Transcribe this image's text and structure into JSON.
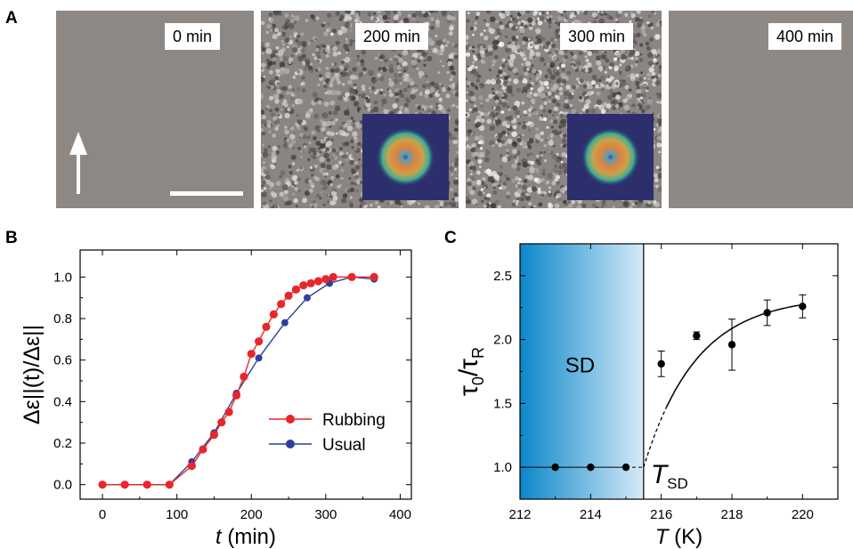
{
  "panel_letters": [
    "A",
    "B",
    "C"
  ],
  "panel_a": {
    "frames": [
      {
        "time_label": "0 min",
        "has_fft_inset": false,
        "has_scale_bar": true,
        "has_arrow": true
      },
      {
        "time_label": "200 min",
        "has_fft_inset": true,
        "has_scale_bar": false,
        "has_arrow": false
      },
      {
        "time_label": "300 min",
        "has_fft_inset": true,
        "has_scale_bar": false,
        "has_arrow": false
      },
      {
        "time_label": "400 min",
        "has_fft_inset": false,
        "has_scale_bar": false,
        "has_arrow": false
      }
    ],
    "colors": {
      "background_gray": "#8d8784",
      "inset_bg": "#2c2f6b",
      "ring_outer": "#3fae95",
      "ring_inner": "#e0823f"
    }
  },
  "chart_data": [
    {
      "id": "B",
      "type": "line",
      "xlabel": "t (min)",
      "ylabel": "Δε||(t)/Δε||",
      "xlim": [
        -30,
        415
      ],
      "ylim": [
        -0.07,
        1.13
      ],
      "xticks": [
        0,
        100,
        200,
        300,
        400
      ],
      "yticks": [
        0.0,
        0.2,
        0.4,
        0.6,
        0.8,
        1.0
      ],
      "xtick_labels": [
        "0",
        "100",
        "200",
        "300",
        "400"
      ],
      "ytick_labels": [
        "0.0",
        "0.2",
        "0.4",
        "0.6",
        "0.8",
        "1.0"
      ],
      "grid": false,
      "legend_position": "bottom-right",
      "series": [
        {
          "name": "Rubbing",
          "color": "#e8262b",
          "x": [
            0,
            30,
            60,
            90,
            120,
            135,
            150,
            160,
            170,
            180,
            190,
            200,
            210,
            220,
            230,
            240,
            250,
            260,
            270,
            280,
            290,
            300,
            310,
            335,
            365
          ],
          "y": [
            0,
            0,
            0,
            0,
            0.09,
            0.17,
            0.24,
            0.3,
            0.35,
            0.43,
            0.52,
            0.63,
            0.69,
            0.76,
            0.82,
            0.87,
            0.91,
            0.94,
            0.96,
            0.97,
            0.98,
            0.99,
            1.0,
            1.0,
            1.0
          ]
        },
        {
          "name": "Usual",
          "color": "#2d3f98",
          "x": [
            0,
            30,
            60,
            90,
            120,
            150,
            180,
            210,
            245,
            275,
            305,
            335,
            365
          ],
          "y": [
            0,
            0,
            0,
            0,
            0.11,
            0.25,
            0.44,
            0.61,
            0.78,
            0.9,
            0.97,
            1.0,
            0.99
          ]
        }
      ]
    },
    {
      "id": "C",
      "type": "scatter",
      "xlabel": "T (K)",
      "ylabel": "τ0/τR",
      "xlim": [
        212,
        221
      ],
      "ylim": [
        0.75,
        2.75
      ],
      "xticks": [
        212,
        214,
        216,
        218,
        220
      ],
      "yticks": [
        1.0,
        1.5,
        2.0,
        2.5
      ],
      "xtick_labels": [
        "212",
        "214",
        "216",
        "218",
        "220"
      ],
      "ytick_labels": [
        "1.0",
        "1.5",
        "2.0",
        "2.5"
      ],
      "grid": false,
      "shaded_region": {
        "x": [
          212,
          215.5
        ],
        "label": "SD",
        "colors": [
          "#0b87c9",
          "#d7ebf8"
        ]
      },
      "transition": {
        "x": 215.5,
        "label": "TSD"
      },
      "points": {
        "x": [
          213,
          214,
          215,
          216,
          217,
          218,
          219,
          220
        ],
        "y": [
          1.0,
          1.0,
          1.0,
          1.81,
          2.03,
          1.96,
          2.21,
          2.26
        ],
        "yerr": [
          0,
          0,
          0,
          0.1,
          0.03,
          0.2,
          0.1,
          0.09
        ]
      },
      "fit": {
        "type": "saturating",
        "plateau": 2.34,
        "base": 1.0,
        "onset": 215.5,
        "tau": 1.5,
        "dashed_until": 216.2
      }
    }
  ]
}
